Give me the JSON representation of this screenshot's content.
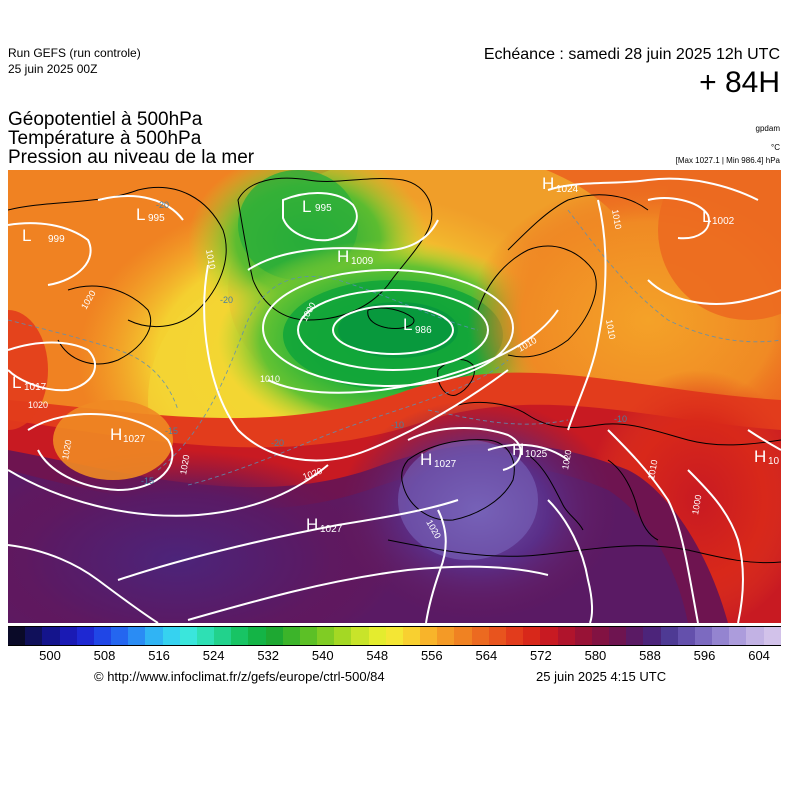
{
  "header": {
    "run": "Run GEFS (run controle)",
    "run_date": "25 juin 2025 00Z",
    "valid": "Echéance : samedi 28 juin 2025 12h UTC",
    "lead": "+ 84H"
  },
  "products": {
    "line1": "Géopotentiel à 500hPa",
    "line2": "Température à 500hPa",
    "line3": "Pression au niveau de la mer"
  },
  "units": {
    "gpdam": "gpdam",
    "degc": "°C",
    "slp": "[Max 1027.1 | Min 986.4] hPa"
  },
  "pressure_centers": [
    {
      "type": "L",
      "value": "995"
    },
    {
      "type": "H",
      "value": "1009"
    },
    {
      "type": "L",
      "value": "986"
    },
    {
      "type": "H",
      "value": "1024"
    },
    {
      "type": "L",
      "value": "1002"
    },
    {
      "type": "L",
      "value": "995"
    },
    {
      "type": "L",
      "value": "999"
    },
    {
      "type": "L",
      "value": "1017"
    },
    {
      "type": "H",
      "value": "1027"
    },
    {
      "type": "H",
      "value": "1027"
    },
    {
      "type": "H",
      "value": "1025"
    },
    {
      "type": "H",
      "value": "1027"
    },
    {
      "type": "H",
      "value": "10"
    }
  ],
  "isobar_labels": [
    "1020",
    "1010",
    "1000",
    "1010",
    "1020",
    "1020",
    "1020",
    "1010",
    "1010",
    "1010",
    "1020",
    "1000",
    "1010",
    "1020",
    "1020"
  ],
  "temperature_labels": [
    "-20",
    "-20",
    "-15",
    "-20",
    "-15",
    "-10",
    "-10"
  ],
  "colorbar": {
    "colors": [
      "#0a0a28",
      "#10105a",
      "#14148c",
      "#1a1ab4",
      "#1e28d2",
      "#2046e6",
      "#2466f0",
      "#2a8cf4",
      "#30b4f4",
      "#36d2f0",
      "#3ae6dc",
      "#2ee0b4",
      "#22d28c",
      "#18c464",
      "#14b446",
      "#1ea832",
      "#3cb42a",
      "#5cc026",
      "#80cc24",
      "#a4d824",
      "#c8e42a",
      "#e4ec2e",
      "#f4e634",
      "#f8d030",
      "#f8b42a",
      "#f49a26",
      "#f08222",
      "#ec6a20",
      "#e8541e",
      "#e23c1c",
      "#d8281a",
      "#c81a22",
      "#b0142c",
      "#981236",
      "#821242",
      "#6e1450",
      "#5a1a64",
      "#4c247a",
      "#4e3a94",
      "#6450ac",
      "#7c6ac0",
      "#9484d0",
      "#ac9cdc",
      "#c2b2e4",
      "#d2c2ea"
    ],
    "ticks": [
      "500",
      "508",
      "516",
      "524",
      "532",
      "540",
      "548",
      "556",
      "564",
      "572",
      "580",
      "588",
      "596",
      "604"
    ]
  },
  "footer": {
    "url": "© http://www.infoclimat.fr/z/gefs/europe/ctrl-500/84",
    "issued": "25 juin 2025  4:15 UTC"
  }
}
